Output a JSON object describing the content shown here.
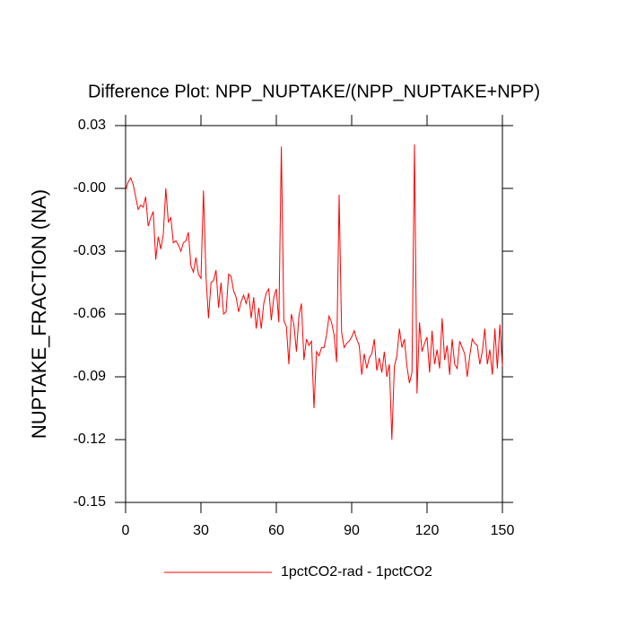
{
  "chart_data": {
    "type": "line",
    "title": "Difference Plot: NPP_NUPTAKE/(NPP_NUPTAKE+NPP)",
    "y_label": "NUPTAKE_FRACTION  (NA)",
    "xlim": [
      0,
      150
    ],
    "xticks": [
      0,
      30,
      60,
      90,
      120,
      150
    ],
    "ylim": [
      -0.15,
      0.03
    ],
    "yticks": [
      0.03,
      {
        "value": 0,
        "label": "-0.00"
      },
      -0.03,
      -0.06,
      -0.09,
      -0.12,
      -0.15
    ],
    "grid": false,
    "legend": "bottom",
    "x": [
      0,
      1,
      2,
      3,
      4,
      5,
      6,
      7,
      8,
      9,
      10,
      11,
      12,
      13,
      14,
      15,
      16,
      17,
      18,
      19,
      20,
      21,
      22,
      23,
      24,
      25,
      26,
      27,
      28,
      29,
      30,
      31,
      32,
      33,
      34,
      35,
      36,
      37,
      38,
      39,
      40,
      41,
      42,
      43,
      44,
      45,
      46,
      47,
      48,
      49,
      50,
      51,
      52,
      53,
      54,
      55,
      56,
      57,
      58,
      59,
      60,
      61,
      62,
      63,
      64,
      65,
      66,
      67,
      68,
      69,
      70,
      71,
      72,
      73,
      74,
      75,
      76,
      77,
      78,
      79,
      80,
      81,
      82,
      83,
      84,
      85,
      86,
      87,
      88,
      89,
      90,
      91,
      92,
      93,
      94,
      95,
      96,
      97,
      98,
      99,
      100,
      101,
      102,
      103,
      104,
      105,
      106,
      107,
      108,
      109,
      110,
      111,
      112,
      113,
      114,
      115,
      116,
      117,
      118,
      119,
      120,
      121,
      122,
      123,
      124,
      125,
      126,
      127,
      128,
      129,
      130,
      131,
      132,
      133,
      134,
      135,
      136,
      137,
      138,
      139,
      140,
      141,
      142,
      143,
      144,
      145,
      146,
      147,
      148,
      149,
      150
    ],
    "series": [
      {
        "name": "1pctCO2-rad - 1pctCO2",
        "color": "#ff0000",
        "values": [
          -0.001,
          0.003,
          0.005,
          0.002,
          -0.004,
          -0.01,
          -0.008,
          -0.009,
          -0.004,
          -0.018,
          -0.014,
          -0.011,
          -0.034,
          -0.023,
          -0.029,
          -0.022,
          0.0,
          -0.016,
          -0.014,
          -0.026,
          -0.025,
          -0.027,
          -0.03,
          -0.026,
          -0.025,
          -0.021,
          -0.037,
          -0.04,
          -0.033,
          -0.041,
          -0.043,
          -0.001,
          -0.042,
          -0.062,
          -0.045,
          -0.044,
          -0.039,
          -0.057,
          -0.045,
          -0.06,
          -0.059,
          -0.041,
          -0.042,
          -0.049,
          -0.052,
          -0.059,
          -0.054,
          -0.051,
          -0.055,
          -0.05,
          -0.062,
          -0.052,
          -0.067,
          -0.057,
          -0.067,
          -0.055,
          -0.05,
          -0.048,
          -0.063,
          -0.052,
          -0.048,
          -0.064,
          0.02,
          -0.063,
          -0.066,
          -0.084,
          -0.06,
          -0.065,
          -0.078,
          -0.061,
          -0.055,
          -0.082,
          -0.072,
          -0.075,
          -0.073,
          -0.105,
          -0.078,
          -0.08,
          -0.076,
          -0.076,
          -0.07,
          -0.061,
          -0.064,
          -0.07,
          -0.083,
          -0.003,
          -0.069,
          -0.076,
          -0.074,
          -0.073,
          -0.071,
          -0.068,
          -0.072,
          -0.075,
          -0.089,
          -0.079,
          -0.086,
          -0.081,
          -0.079,
          -0.072,
          -0.087,
          -0.081,
          -0.088,
          -0.078,
          -0.09,
          -0.084,
          -0.12,
          -0.085,
          -0.08,
          -0.067,
          -0.076,
          -0.072,
          -0.085,
          -0.093,
          -0.088,
          0.021,
          -0.098,
          -0.064,
          -0.078,
          -0.074,
          -0.071,
          -0.088,
          -0.068,
          -0.084,
          -0.077,
          -0.086,
          -0.062,
          -0.082,
          -0.075,
          -0.089,
          -0.072,
          -0.084,
          -0.086,
          -0.073,
          -0.076,
          -0.079,
          -0.09,
          -0.08,
          -0.072,
          -0.074,
          -0.075,
          -0.084,
          -0.078,
          -0.067,
          -0.084,
          -0.077,
          -0.089,
          -0.067,
          -0.086,
          -0.065,
          -0.085
        ]
      }
    ]
  }
}
